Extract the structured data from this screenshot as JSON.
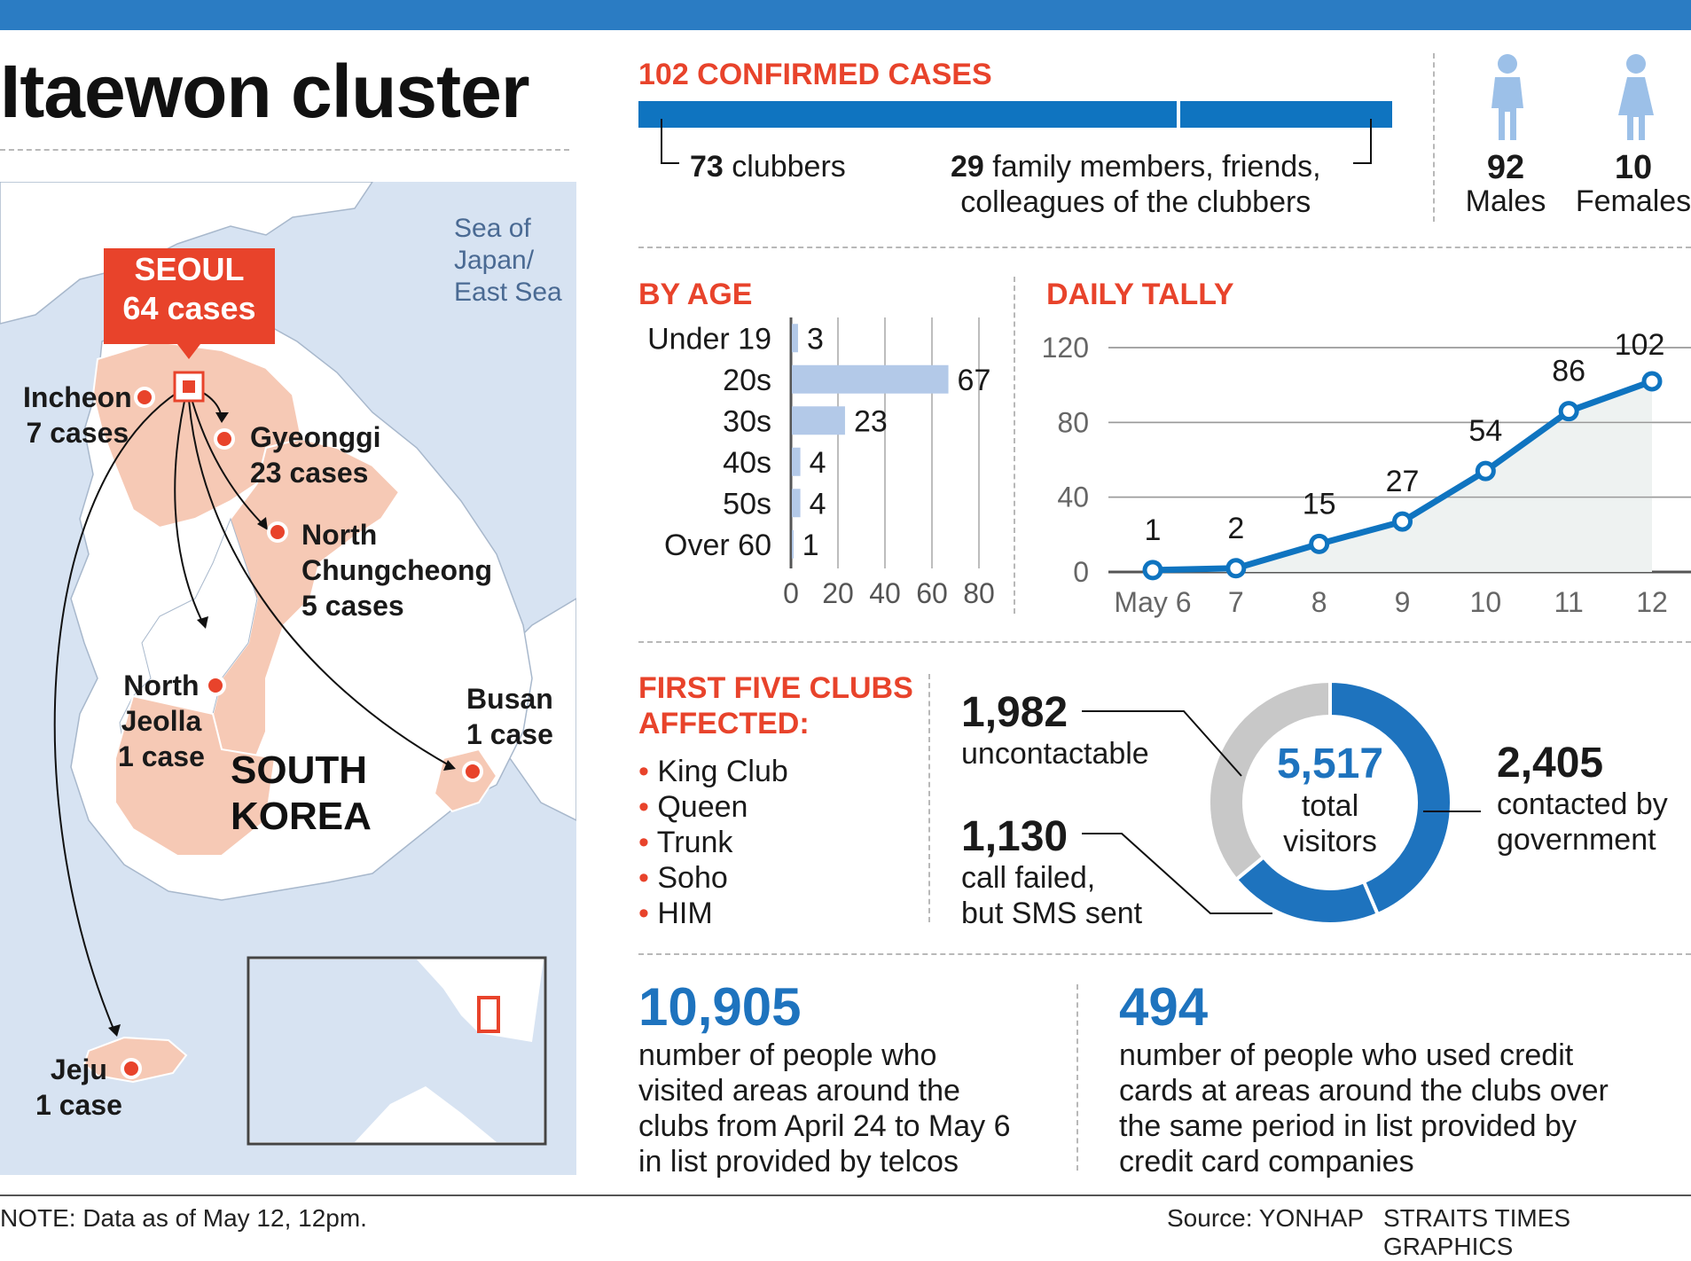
{
  "title": "Itaewon cluster",
  "confirmed": {
    "heading": "102 CONFIRMED CASES",
    "clubbers_num": "73",
    "clubbers_label": " clubbers",
    "others_num": "29",
    "others_label_1": " family members, friends,",
    "others_label_2": "colleagues of the clubbers"
  },
  "gender": {
    "males_num": "92",
    "males_label": "Males",
    "females_num": "10",
    "females_label": "Females",
    "male_icon": "male-figure-icon",
    "female_icon": "female-figure-icon"
  },
  "map": {
    "seoul_name": "SEOUL",
    "seoul_cases": "64 cases",
    "sea_1": "Sea of",
    "sea_2": "Japan/",
    "sea_3": "East Sea",
    "country_1": "SOUTH",
    "country_2": "KOREA",
    "regions": [
      {
        "name": "Incheon",
        "cases": "7 cases"
      },
      {
        "name": "Gyeonggi",
        "cases": "23 cases"
      },
      {
        "name": "North",
        "name2": "Chungcheong",
        "cases": "5 cases"
      },
      {
        "name": "North",
        "name2": "Jeolla",
        "cases": "1 case"
      },
      {
        "name": "Busan",
        "cases": "1 case"
      },
      {
        "name": "Jeju",
        "cases": "1 case"
      }
    ]
  },
  "colors": {
    "accent_red": "#e8432b",
    "accent_blue": "#1e73be",
    "bar_blue": "#0f74c0",
    "age_bar": "#b3c9e8",
    "region_fill": "#f6c9b5",
    "sea": "#d7e3f2",
    "donut_grey": "#c8c8c8"
  },
  "chart_data": [
    {
      "type": "bar",
      "title": "BY AGE",
      "orientation": "horizontal",
      "categories": [
        "Under 19",
        "20s",
        "30s",
        "40s",
        "50s",
        "Over 60"
      ],
      "values": [
        3,
        67,
        23,
        4,
        4,
        1
      ],
      "xticks": [
        "0",
        "20",
        "40",
        "60",
        "80"
      ],
      "xlim": [
        0,
        80
      ],
      "grid": true
    },
    {
      "type": "line",
      "title": "DAILY TALLY",
      "x": [
        "May 6",
        "7",
        "8",
        "9",
        "10",
        "11",
        "12"
      ],
      "values": [
        1,
        2,
        15,
        27,
        54,
        86,
        102
      ],
      "yticks": [
        "0",
        "40",
        "80",
        "120"
      ],
      "ylim": [
        0,
        120
      ],
      "grid": true
    },
    {
      "type": "pie",
      "variant": "donut",
      "center_value": "5,517",
      "center_label_1": "total",
      "center_label_2": "visitors",
      "segments": [
        {
          "value": 2405,
          "value_text": "2,405",
          "label_1": "contacted by",
          "label_2": "government"
        },
        {
          "value": 1130,
          "value_text": "1,130",
          "label_1": "call failed,",
          "label_2": "but SMS sent"
        },
        {
          "value": 1982,
          "value_text": "1,982",
          "label_1": "uncontactable",
          "label_2": ""
        }
      ]
    }
  ],
  "clubs": {
    "heading_1": "FIRST FIVE CLUBS",
    "heading_2": "AFFECTED:",
    "items": [
      "King Club",
      "Queen",
      "Trunk",
      "Soho",
      "HIM"
    ]
  },
  "stats": {
    "telco_num": "10,905",
    "telco_text": [
      "number of people who",
      "visited areas around the",
      "clubs from April 24 to May 6",
      "in list provided by telcos"
    ],
    "card_num": "494",
    "card_text": [
      "number of people who used credit",
      "cards at areas around the clubs over",
      "the same period in list provided by",
      "credit card companies"
    ]
  },
  "footer": {
    "note": "NOTE: Data as of May 12, 12pm.",
    "source": "Source: YONHAP",
    "credit": "STRAITS TIMES GRAPHICS"
  }
}
